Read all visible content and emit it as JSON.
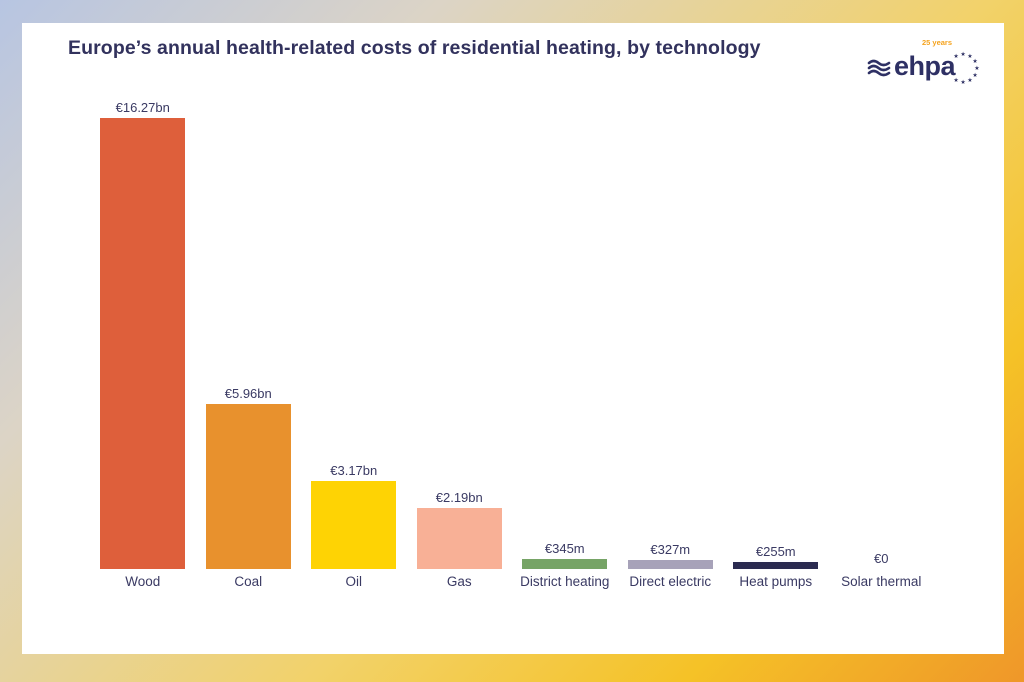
{
  "logo": {
    "name": "ehpa",
    "badge": "25 years",
    "navy": "#2e3064",
    "orange": "#f5a31e"
  },
  "chart_data": {
    "type": "bar",
    "title": "Europe’s annual health-related costs of residential heating, by technology",
    "categories": [
      "Wood",
      "Coal",
      "Oil",
      "Gas",
      "District heating",
      "Direct electric",
      "Heat pumps",
      "Solar thermal"
    ],
    "values_eur_millions": [
      16270,
      5960,
      3170,
      2190,
      345,
      327,
      255,
      0
    ],
    "value_labels": [
      "€16.27bn",
      "€5.96bn",
      "€3.17bn",
      "€2.19bn",
      "€345m",
      "€327m",
      "€255m",
      "€0"
    ],
    "bar_colors": [
      "#de5f3b",
      "#e8912d",
      "#fed304",
      "#f8b096",
      "#76a466",
      "#a7a2b9",
      "#2b2b50",
      "transparent"
    ],
    "xlabel": "",
    "ylabel": "",
    "ylim": [
      0,
      16800
    ],
    "grid": false,
    "legend": false
  }
}
